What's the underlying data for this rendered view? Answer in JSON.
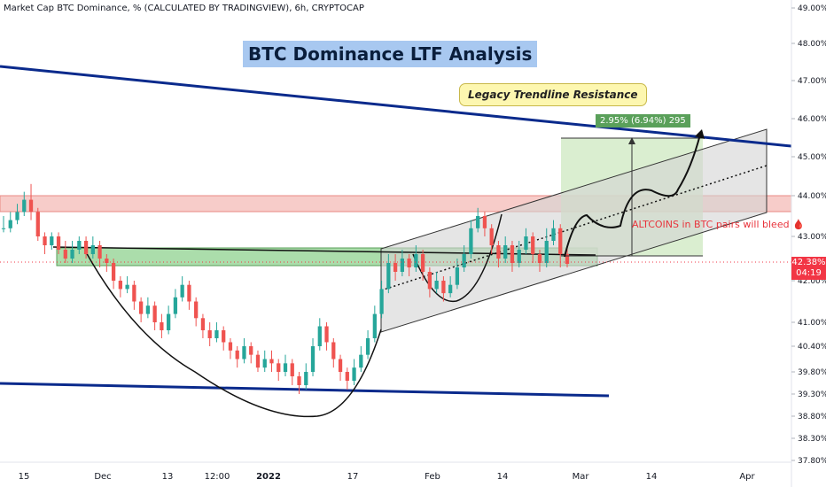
{
  "header": "Market Cap BTC Dominance, % (CALCULATED BY TRADINGVIEW), 6h, CRYPTOCAP",
  "title": "BTC Dominance LTF Analysis",
  "annotations": {
    "callout": "Legacy Trendline Resistance",
    "gain": "2.95% (6.94%) 295",
    "alt_bleed": "ALTCOINS in BTC pairs will bleed 🩸"
  },
  "current_price": {
    "value": "42.38%",
    "countdown": "04:19"
  },
  "colors": {
    "up_candle": "#26a69a",
    "down_candle": "#ef5350",
    "trendline": "#0a2a8c",
    "resistance_zone": "#f4b6b2",
    "support_zone": "#8fd18f",
    "channel": "#d9d9d9",
    "projection": "#cde8c0"
  },
  "chart_data": {
    "type": "candlestick",
    "y_axis": {
      "unit": "%",
      "ticks": [
        49.0,
        48.0,
        47.0,
        46.0,
        45.0,
        44.0,
        43.0,
        42.0,
        41.0,
        40.4,
        39.8,
        39.3,
        38.8,
        38.3,
        37.8
      ],
      "tick_labels": [
        "49.00%",
        "48.00%",
        "47.00%",
        "46.00%",
        "45.00%",
        "44.00%",
        "43.00%",
        "42.00%",
        "41.00%",
        "40.40%",
        "39.80%",
        "39.30%",
        "38.80%",
        "38.30%",
        "37.80%"
      ],
      "range": [
        37.7,
        49.2
      ]
    },
    "x_axis": {
      "labels": [
        "15",
        "Dec",
        "13",
        "12:00",
        "2022",
        "17",
        "Feb",
        "14",
        "Mar",
        "14",
        "Apr"
      ],
      "bold": [
        "2022"
      ]
    },
    "ohlc": [
      [
        43.2,
        43.2,
        43.5,
        43.1
      ],
      [
        43.2,
        43.4,
        43.6,
        43.1
      ],
      [
        43.4,
        43.6,
        43.8,
        43.3
      ],
      [
        43.6,
        43.9,
        44.1,
        43.5
      ],
      [
        43.9,
        43.6,
        44.3,
        43.4
      ],
      [
        43.6,
        43.0,
        43.7,
        42.9
      ],
      [
        43.0,
        42.8,
        43.1,
        42.6
      ],
      [
        42.8,
        43.0,
        43.1,
        42.7
      ],
      [
        43.0,
        42.7,
        43.1,
        42.6
      ],
      [
        42.7,
        42.5,
        42.9,
        42.4
      ],
      [
        42.5,
        42.7,
        42.9,
        42.4
      ],
      [
        42.7,
        42.9,
        43.0,
        42.6
      ],
      [
        42.9,
        42.6,
        43.0,
        42.5
      ],
      [
        42.6,
        42.8,
        43.0,
        42.5
      ],
      [
        42.8,
        42.5,
        42.9,
        42.3
      ],
      [
        42.5,
        42.4,
        42.6,
        42.2
      ],
      [
        42.4,
        42.0,
        42.5,
        41.8
      ],
      [
        42.0,
        41.8,
        42.1,
        41.6
      ],
      [
        41.8,
        41.9,
        42.1,
        41.7
      ],
      [
        41.9,
        41.5,
        42.0,
        41.3
      ],
      [
        41.5,
        41.2,
        41.6,
        41.0
      ],
      [
        41.2,
        41.4,
        41.6,
        41.1
      ],
      [
        41.4,
        41.0,
        41.5,
        40.8
      ],
      [
        41.0,
        40.8,
        41.2,
        40.6
      ],
      [
        40.8,
        41.2,
        41.4,
        40.7
      ],
      [
        41.2,
        41.6,
        41.8,
        41.1
      ],
      [
        41.6,
        41.9,
        42.1,
        41.5
      ],
      [
        41.9,
        41.5,
        42.0,
        41.3
      ],
      [
        41.5,
        41.1,
        41.6,
        40.9
      ],
      [
        41.1,
        40.8,
        41.2,
        40.6
      ],
      [
        40.8,
        40.6,
        41.0,
        40.4
      ],
      [
        40.6,
        40.8,
        41.0,
        40.5
      ],
      [
        40.8,
        40.5,
        40.9,
        40.3
      ],
      [
        40.5,
        40.3,
        40.6,
        40.1
      ],
      [
        40.3,
        40.1,
        40.4,
        39.9
      ],
      [
        40.1,
        40.4,
        40.6,
        40.0
      ],
      [
        40.4,
        40.2,
        40.5,
        40.0
      ],
      [
        40.2,
        39.9,
        40.3,
        39.8
      ],
      [
        39.9,
        40.1,
        40.3,
        39.8
      ],
      [
        40.1,
        40.0,
        40.3,
        39.8
      ],
      [
        40.0,
        39.8,
        40.1,
        39.6
      ],
      [
        39.8,
        40.0,
        40.2,
        39.7
      ],
      [
        40.0,
        39.7,
        40.1,
        39.5
      ],
      [
        39.7,
        39.5,
        39.8,
        39.3
      ],
      [
        39.5,
        39.8,
        40.0,
        39.4
      ],
      [
        39.8,
        40.4,
        40.6,
        39.7
      ],
      [
        40.4,
        40.9,
        41.1,
        40.3
      ],
      [
        40.9,
        40.5,
        41.0,
        40.3
      ],
      [
        40.5,
        40.1,
        40.6,
        39.9
      ],
      [
        40.1,
        39.8,
        40.2,
        39.6
      ],
      [
        39.8,
        39.6,
        39.9,
        39.4
      ],
      [
        39.6,
        39.9,
        40.1,
        39.5
      ],
      [
        39.9,
        40.2,
        40.4,
        39.8
      ],
      [
        40.2,
        40.6,
        40.8,
        40.1
      ],
      [
        40.6,
        41.2,
        41.4,
        40.5
      ],
      [
        41.2,
        41.8,
        42.0,
        41.1
      ],
      [
        41.8,
        42.4,
        42.6,
        41.7
      ],
      [
        42.4,
        42.2,
        42.6,
        42.0
      ],
      [
        42.2,
        42.5,
        42.7,
        42.1
      ],
      [
        42.5,
        42.3,
        42.6,
        42.1
      ],
      [
        42.3,
        42.6,
        42.8,
        42.2
      ],
      [
        42.6,
        42.2,
        42.7,
        42.0
      ],
      [
        42.2,
        41.8,
        42.3,
        41.6
      ],
      [
        41.8,
        42.0,
        42.2,
        41.7
      ],
      [
        42.0,
        41.7,
        42.1,
        41.5
      ],
      [
        41.7,
        41.9,
        42.1,
        41.6
      ],
      [
        41.9,
        42.3,
        42.5,
        41.8
      ],
      [
        42.3,
        42.6,
        42.8,
        42.2
      ],
      [
        42.6,
        43.2,
        43.4,
        42.5
      ],
      [
        43.2,
        43.5,
        43.7,
        43.1
      ],
      [
        43.5,
        43.2,
        43.6,
        43.0
      ],
      [
        43.2,
        42.8,
        43.3,
        42.6
      ],
      [
        42.8,
        42.5,
        42.9,
        42.3
      ],
      [
        42.5,
        42.8,
        43.0,
        42.4
      ],
      [
        42.8,
        42.4,
        42.9,
        42.2
      ],
      [
        42.4,
        42.7,
        42.9,
        42.3
      ],
      [
        42.7,
        43.0,
        43.2,
        42.6
      ],
      [
        43.0,
        42.6,
        43.1,
        42.4
      ],
      [
        42.6,
        42.4,
        42.7,
        42.2
      ],
      [
        42.4,
        42.9,
        43.2,
        42.3
      ],
      [
        42.9,
        43.2,
        43.4,
        42.8
      ],
      [
        43.2,
        42.6,
        43.3,
        42.3
      ],
      [
        42.6,
        42.38,
        42.8,
        42.3
      ]
    ],
    "levels": {
      "resistance_zone": [
        43.65,
        44.1
      ],
      "support_zone": [
        42.3,
        42.7
      ],
      "measured_move": {
        "from": 42.55,
        "to": 45.5,
        "change_pct": 2.95
      }
    }
  }
}
